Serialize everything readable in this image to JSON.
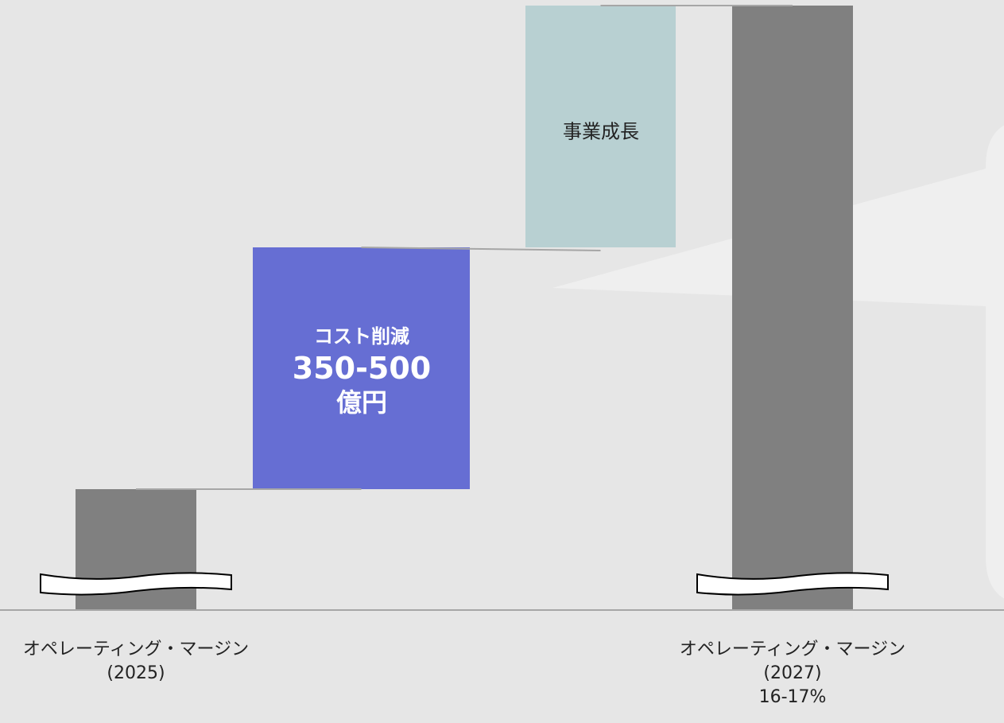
{
  "chart_data": {
    "type": "waterfall",
    "categories": [
      "オペレーティング・マージン (2025)",
      "コスト削減",
      "事業成長",
      "オペレーティング・マージン (2027)"
    ],
    "steps": [
      {
        "label": "オペレーティング・マージン",
        "sublabel": "(2025)",
        "kind": "total",
        "value": 1.0,
        "color": "#808080"
      },
      {
        "label": "コスト削減",
        "amount": "350-500",
        "unit": "億円",
        "kind": "increase",
        "value": 2.0,
        "color": "#666ed3"
      },
      {
        "label": "事業成長",
        "kind": "increase",
        "value": 2.0,
        "color": "#b8d0d2"
      },
      {
        "label": "オペレーティング・マージン",
        "sublabel": "(2027)",
        "extra": "16-17%",
        "kind": "total",
        "value": 5.0,
        "color": "#808080"
      }
    ],
    "axis_break": true,
    "ylim": [
      0,
      5.0
    ]
  },
  "colors": {
    "background": "#e6e6e6",
    "total_bar": "#808080",
    "cost_bar": "#666ed3",
    "growth_bar": "#b8d0d2",
    "connector": "#a6a6a6",
    "callout": "#f2f2f2"
  },
  "labels": {
    "left_title": "オペレーティング・マージン",
    "left_year": "(2025)",
    "right_title": "オペレーティング・マージン",
    "right_year": "(2027)",
    "right_value": "16-17%",
    "cost_title": "コスト削減",
    "cost_amount": "350-500",
    "cost_unit": "億円",
    "growth_title": "事業成長"
  }
}
